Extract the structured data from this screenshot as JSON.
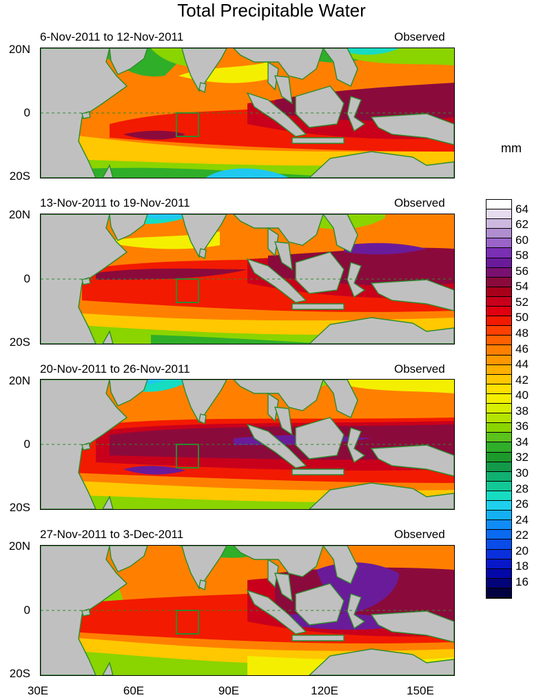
{
  "title": "Total Precipitable Water",
  "units": "mm",
  "panels": [
    {
      "date_range": "6-Nov-2011 to 12-Nov-2011",
      "status": "Observed"
    },
    {
      "date_range": "13-Nov-2011 to 19-Nov-2011",
      "status": "Observed"
    },
    {
      "date_range": "20-Nov-2011 to 26-Nov-2011",
      "status": "Observed"
    },
    {
      "date_range": "27-Nov-2011 to 3-Dec-2011",
      "status": "Observed"
    }
  ],
  "lat_labels": [
    "20N",
    "0",
    "20S"
  ],
  "lon_labels": [
    "30E",
    "60E",
    "90E",
    "120E",
    "150E"
  ],
  "colorbar": {
    "labels": [
      "64",
      "62",
      "60",
      "58",
      "56",
      "54",
      "52",
      "50",
      "48",
      "46",
      "44",
      "42",
      "40",
      "38",
      "36",
      "34",
      "32",
      "30",
      "28",
      "26",
      "24",
      "22",
      "20",
      "18",
      "16"
    ],
    "colors": [
      "#ffffff",
      "#e6dcf0",
      "#cdb8e0",
      "#b08ed0",
      "#9a64c8",
      "#7b2fb5",
      "#6a1b9a",
      "#7a1070",
      "#8b0a3c",
      "#a8001a",
      "#c8001c",
      "#e00010",
      "#f21a00",
      "#ff4000",
      "#ff6000",
      "#ff8000",
      "#ff9800",
      "#ffb000",
      "#ffc800",
      "#ffe000",
      "#f4ef00",
      "#d8f000",
      "#b4e400",
      "#8ad400",
      "#5cc21c",
      "#2fae2a",
      "#1c9a2c",
      "#129a4a",
      "#10b070",
      "#12c896",
      "#16dcc2",
      "#1ed0ee",
      "#14b0f4",
      "#0f8cf6",
      "#0a6af0",
      "#0a4ce8",
      "#0a30dc",
      "#0818c8",
      "#0408a8",
      "#04047a",
      "#020240"
    ]
  },
  "map_colors": {
    "land": "#c0c0c0",
    "coast": "#2d8a2d",
    "region_box": "#2d8a2d"
  }
}
